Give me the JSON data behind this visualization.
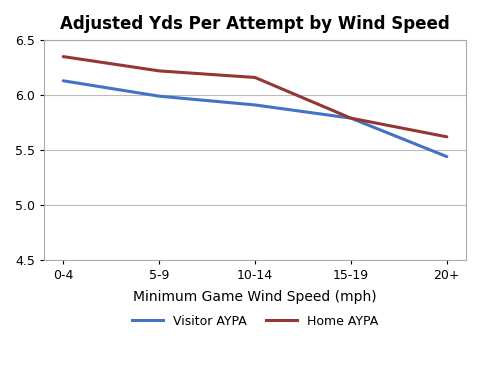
{
  "title": "Adjusted Yds Per Attempt by Wind Speed",
  "xlabel": "Minimum Game Wind Speed (mph)",
  "categories": [
    "0-4",
    "5-9",
    "10-14",
    "15-19",
    "20+"
  ],
  "visitor_aypa": [
    6.13,
    5.99,
    5.91,
    5.79,
    5.44
  ],
  "home_aypa": [
    6.35,
    6.22,
    6.16,
    5.79,
    5.62
  ],
  "visitor_color": "#4472C4",
  "home_color": "#943634",
  "ylim": [
    4.5,
    6.5
  ],
  "yticks": [
    4.5,
    5.0,
    5.5,
    6.0,
    6.5
  ],
  "visitor_label": "Visitor AYPA",
  "home_label": "Home AYPA",
  "line_width": 2.2,
  "bg_color": "#FFFFFF",
  "grid_color": "#BBBBBB",
  "title_fontsize": 12,
  "axis_label_fontsize": 10,
  "tick_fontsize": 9,
  "legend_fontsize": 9
}
